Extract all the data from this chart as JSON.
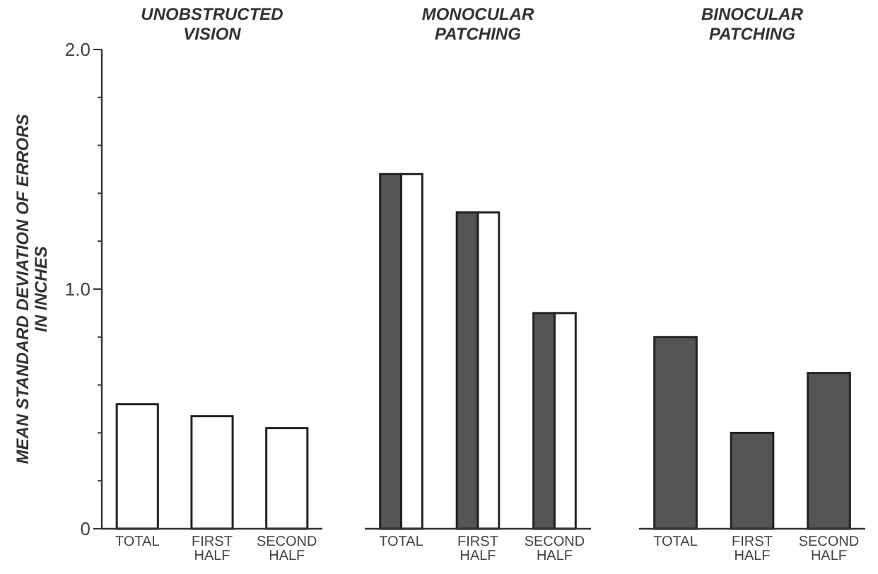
{
  "chart_data": [
    {
      "type": "bar",
      "title": "UNOBSTRUCTED VISION",
      "ylabel": "MEAN STANDARD DEVIATION OF ERRORS IN INCHES",
      "categories": [
        "TOTAL",
        "FIRST HALF",
        "SECOND HALF"
      ],
      "ylim": [
        0,
        2
      ],
      "yticks": [
        {
          "value": 0,
          "label": "0"
        },
        {
          "value": 0.2,
          "label": null
        },
        {
          "value": 0.4,
          "label": null
        },
        {
          "value": 0.6,
          "label": null
        },
        {
          "value": 0.8,
          "label": null
        },
        {
          "value": 1,
          "label": "1.0"
        },
        {
          "value": 1.2,
          "label": null
        },
        {
          "value": 1.4,
          "label": null
        },
        {
          "value": 1.6,
          "label": null
        },
        {
          "value": 1.8,
          "label": null
        },
        {
          "value": 2,
          "label": "2.0"
        }
      ],
      "series": [
        {
          "color": "#ffffff",
          "values": [
            0.52,
            0.47,
            0.42
          ]
        }
      ]
    },
    {
      "type": "bar",
      "title": "MONOCULAR PATCHING",
      "categories": [
        "TOTAL",
        "FIRST HALF",
        "SECOND HALF"
      ],
      "ylim": [
        0,
        2
      ],
      "tick_labels": "x",
      "series": [
        {
          "color": "#555555",
          "values": [
            1.48,
            1.32,
            0.9
          ]
        },
        {
          "color": "#ffffff",
          "values": [
            1.48,
            1.32,
            0.9
          ]
        }
      ]
    },
    {
      "type": "bar",
      "title": "BINOCULAR PATCHING",
      "categories": [
        "TOTAL",
        "FIRST HALF",
        "SECOND HALF"
      ],
      "ylim": [
        0,
        2
      ],
      "tick_labels": "x",
      "series": [
        {
          "color": "#555555",
          "values": [
            0.8,
            0.4,
            0.65
          ]
        }
      ]
    }
  ]
}
